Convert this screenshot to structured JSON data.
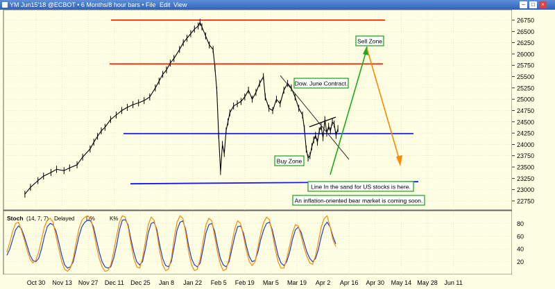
{
  "window": {
    "title": "YM Jun15'18 @ECBOT • 6 Months/8 hour bars •",
    "menu": [
      "File",
      "Edit",
      "View"
    ],
    "buttons": [
      "–",
      "□",
      "×"
    ]
  },
  "chart_data": [
    {
      "type": "line",
      "kind": "price-bars",
      "x_ticks": [
        "Oct 30",
        "Nov 13",
        "Nov 27",
        "Dec 11",
        "Dec 25",
        "Jan 8",
        "Jan 22",
        "Feb 5",
        "Feb 19",
        "Mar 5",
        "Mar 19",
        "Apr 2",
        "Apr 16",
        "Apr 30",
        "May 14",
        "May 28",
        "Jun 11"
      ],
      "y_ticks": [
        22750,
        23000,
        23250,
        23500,
        23750,
        24000,
        24250,
        24500,
        24750,
        25000,
        25250,
        25500,
        25750,
        26000,
        26250,
        26500,
        26750
      ],
      "ylim": [
        22550,
        26980
      ],
      "axis_side": "right",
      "grid": true,
      "series": [
        {
          "x": [
            "Oct 24",
            "Oct 27",
            "Oct 31",
            "Nov 3",
            "Nov 7",
            "Nov 10",
            "Nov 14",
            "Nov 17",
            "Nov 21",
            "Nov 24",
            "Nov 28",
            "Nov 30",
            "Dec 2",
            "Dec 4",
            "Dec 6",
            "Dec 9",
            "Dec 12",
            "Dec 15",
            "Dec 18",
            "Dec 21",
            "Dec 24",
            "Dec 27",
            "Dec 30",
            "Jan 2",
            "Jan 4",
            "Jan 6",
            "Jan 8",
            "Jan 10",
            "Jan 12",
            "Jan 15",
            "Jan 17",
            "Jan 19",
            "Jan 21",
            "Jan 23",
            "Jan 25",
            "Jan 26",
            "Jan 27",
            "Jan 29",
            "Jan 31",
            "Feb 2",
            "Feb 3",
            "Feb 4",
            "Feb 5",
            "Feb 6",
            "Feb 7",
            "Feb 8",
            "Feb 9",
            "Feb 10",
            "Feb 11",
            "Feb 13",
            "Feb 15",
            "Feb 17",
            "Feb 19",
            "Feb 21",
            "Feb 23",
            "Feb 25",
            "Feb 27",
            "Mar 1",
            "Mar 2",
            "Mar 4",
            "Mar 6",
            "Mar 8",
            "Mar 10",
            "Mar 12",
            "Mar 14",
            "Mar 16",
            "Mar 18",
            "Mar 20",
            "Mar 22",
            "Mar 23",
            "Mar 24",
            "Mar 25",
            "Mar 26",
            "Mar 27",
            "Mar 28",
            "Mar 29",
            "Mar 30",
            "Mar 31",
            "Apr 1",
            "Apr 2",
            "Apr 3",
            "Apr 4",
            "Apr 5",
            "Apr 6",
            "Apr 7",
            "Apr 8",
            "Apr 9",
            "Apr 10"
          ],
          "values": [
            22900,
            23050,
            23200,
            23300,
            23380,
            23450,
            23420,
            23480,
            23550,
            23720,
            23900,
            24050,
            24180,
            24300,
            24380,
            24550,
            24650,
            24750,
            24820,
            24880,
            24920,
            24970,
            25050,
            25250,
            25400,
            25550,
            25650,
            25800,
            25900,
            26100,
            26250,
            26350,
            26450,
            26550,
            26620,
            26700,
            26600,
            26400,
            26200,
            26100,
            25700,
            25200,
            24200,
            23400,
            24000,
            23800,
            24300,
            24500,
            24700,
            24850,
            24900,
            24950,
            25050,
            25200,
            25000,
            25150,
            25350,
            25500,
            25050,
            24800,
            24750,
            25000,
            24900,
            25200,
            25350,
            25250,
            25050,
            24800,
            24650,
            24350,
            23900,
            23700,
            23750,
            23950,
            24100,
            24200,
            24050,
            24300,
            24400,
            24150,
            24550,
            24250,
            24400,
            24300,
            24500,
            24450,
            24200,
            24350
          ]
        }
      ],
      "horizontal_lines": [
        {
          "value": 26750,
          "color": "#ff2200"
        },
        {
          "value": 25780,
          "color": "#ff2200"
        },
        {
          "value": 24240,
          "color": "#1515ff"
        },
        {
          "value": 23130,
          "color": "#1515ff"
        }
      ],
      "annotations": [
        {
          "text": "Sell Zone"
        },
        {
          "text": "Dow. June Contract."
        },
        {
          "text": "Buy Zone"
        },
        {
          "text": "Line In the sand for US stocks is here."
        },
        {
          "text": "An inflation-oriented bear market is coming soon."
        }
      ],
      "colors": {
        "background": "#fefee2",
        "bars": "#000000",
        "resistance": "#ff2200",
        "support": "#1515ff",
        "arrow_up": "#1aaa1a",
        "arrow_down": "#ff8800",
        "label_border": "#22aa22"
      }
    },
    {
      "type": "line",
      "title": "Stoch",
      "params": "(14, 7, 7)",
      "status": "Delayed",
      "legend": [
        "D%",
        "K%"
      ],
      "y_ticks": [
        20,
        40,
        60,
        80
      ],
      "ylim": [
        0,
        100
      ],
      "series": [
        {
          "name": "D%",
          "color": "#1a3fd6",
          "values": [
            30,
            40,
            55,
            70,
            76,
            72,
            60,
            45,
            30,
            22,
            20,
            25,
            40,
            60,
            75,
            80,
            78,
            68,
            50,
            30,
            15,
            10,
            12,
            20,
            40,
            60,
            75,
            82,
            85,
            84,
            75,
            55,
            35,
            20,
            12,
            10,
            12,
            25,
            45,
            70,
            85,
            86,
            78,
            55,
            35,
            20,
            15,
            20,
            40,
            65,
            80,
            82,
            70,
            45,
            25,
            14,
            12,
            20,
            45,
            70,
            82,
            84,
            70,
            45,
            25,
            15,
            12,
            18,
            40,
            65,
            78,
            80,
            68,
            45,
            25,
            15,
            12,
            20,
            40,
            60,
            75,
            76,
            65,
            45,
            28,
            20,
            22,
            35,
            55,
            70,
            80,
            82,
            70,
            50,
            30,
            18,
            14,
            20,
            35,
            55,
            70,
            74,
            66,
            50,
            35,
            25,
            20,
            25,
            40,
            60,
            76,
            82,
            75,
            60,
            48
          ]
        },
        {
          "name": "K%",
          "color": "#ff8800",
          "values": [
            35,
            50,
            68,
            80,
            82,
            70,
            55,
            38,
            24,
            18,
            22,
            35,
            55,
            75,
            85,
            88,
            82,
            60,
            40,
            20,
            8,
            5,
            10,
            25,
            50,
            72,
            85,
            90,
            92,
            88,
            70,
            45,
            25,
            12,
            5,
            6,
            15,
            35,
            60,
            82,
            92,
            90,
            75,
            48,
            25,
            12,
            10,
            25,
            52,
            78,
            90,
            85,
            65,
            35,
            15,
            6,
            8,
            25,
            58,
            82,
            92,
            88,
            65,
            35,
            15,
            6,
            8,
            25,
            52,
            78,
            88,
            84,
            60,
            35,
            16,
            6,
            8,
            25,
            50,
            72,
            84,
            80,
            60,
            38,
            20,
            14,
            20,
            42,
            65,
            82,
            90,
            86,
            65,
            40,
            20,
            10,
            10,
            25,
            45,
            65,
            78,
            76,
            60,
            42,
            28,
            18,
            16,
            30,
            52,
            75,
            88,
            92,
            75,
            55,
            44
          ]
        }
      ]
    }
  ]
}
